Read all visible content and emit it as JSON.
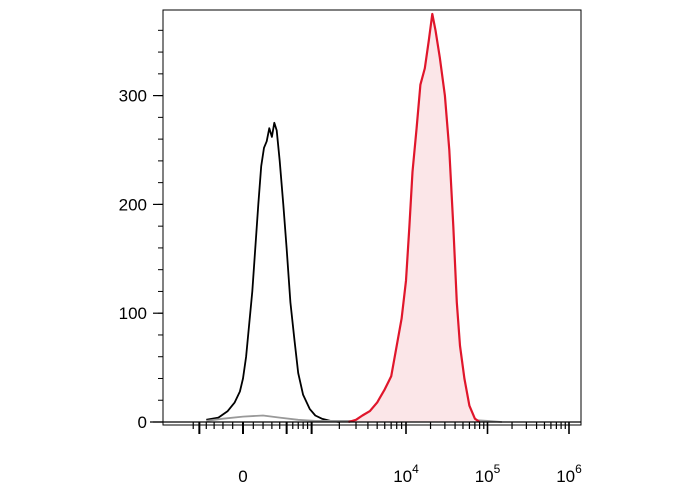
{
  "chart_data": {
    "type": "histogram",
    "title": "",
    "xlabel": "",
    "ylabel": "",
    "x_scale": "biexponential",
    "ylim": [
      0,
      380
    ],
    "grid": false,
    "y_ticks": [
      {
        "value": 0,
        "label": "0"
      },
      {
        "value": 100,
        "label": "100"
      },
      {
        "value": 200,
        "label": "200"
      },
      {
        "value": 300,
        "label": "300"
      }
    ],
    "x_ticks": [
      {
        "value": 0,
        "base": "0",
        "exp": ""
      },
      {
        "value": 10000,
        "base": "10",
        "exp": "4"
      },
      {
        "value": 100000,
        "base": "10",
        "exp": "5"
      },
      {
        "value": 1000000,
        "base": "10",
        "exp": "6"
      }
    ],
    "series": [
      {
        "color": "#000000",
        "filled": false,
        "points": [
          [
            -400,
            2
          ],
          [
            -250,
            4
          ],
          [
            -150,
            10
          ],
          [
            -80,
            18
          ],
          [
            -30,
            28
          ],
          [
            0,
            40
          ],
          [
            30,
            60
          ],
          [
            60,
            90
          ],
          [
            90,
            120
          ],
          [
            120,
            160
          ],
          [
            150,
            200
          ],
          [
            180,
            235
          ],
          [
            210,
            252
          ],
          [
            240,
            258
          ],
          [
            270,
            270
          ],
          [
            300,
            262
          ],
          [
            330,
            275
          ],
          [
            360,
            268
          ],
          [
            400,
            240
          ],
          [
            450,
            200
          ],
          [
            500,
            160
          ],
          [
            560,
            110
          ],
          [
            630,
            75
          ],
          [
            700,
            45
          ],
          [
            800,
            25
          ],
          [
            950,
            12
          ],
          [
            1100,
            6
          ],
          [
            1300,
            3
          ],
          [
            1600,
            1
          ],
          [
            2000,
            0
          ]
        ]
      },
      {
        "color": "#999999",
        "filled": false,
        "points": [
          [
            -400,
            1
          ],
          [
            -200,
            3
          ],
          [
            0,
            5
          ],
          [
            200,
            6
          ],
          [
            400,
            4
          ],
          [
            700,
            2
          ],
          [
            1100,
            1
          ],
          [
            1600,
            1
          ],
          [
            2500,
            1
          ],
          [
            4000,
            1
          ],
          [
            8000,
            0
          ],
          [
            15000,
            1
          ],
          [
            30000,
            1
          ],
          [
            60000,
            2
          ],
          [
            100000,
            1
          ],
          [
            150000,
            0
          ]
        ]
      },
      {
        "color": "#e0162b",
        "fill": "#fbe6e8",
        "filled": true,
        "points": [
          [
            2500,
            0
          ],
          [
            3000,
            2
          ],
          [
            3500,
            6
          ],
          [
            4200,
            10
          ],
          [
            5000,
            18
          ],
          [
            6000,
            30
          ],
          [
            7000,
            42
          ],
          [
            8000,
            70
          ],
          [
            9000,
            95
          ],
          [
            10000,
            130
          ],
          [
            11000,
            180
          ],
          [
            12000,
            230
          ],
          [
            13500,
            270
          ],
          [
            15000,
            310
          ],
          [
            17000,
            325
          ],
          [
            19000,
            350
          ],
          [
            21000,
            375
          ],
          [
            23000,
            360
          ],
          [
            26000,
            335
          ],
          [
            30000,
            300
          ],
          [
            34000,
            250
          ],
          [
            38000,
            180
          ],
          [
            42000,
            110
          ],
          [
            46000,
            70
          ],
          [
            52000,
            40
          ],
          [
            60000,
            15
          ],
          [
            70000,
            3
          ],
          [
            80000,
            0
          ]
        ]
      }
    ]
  }
}
